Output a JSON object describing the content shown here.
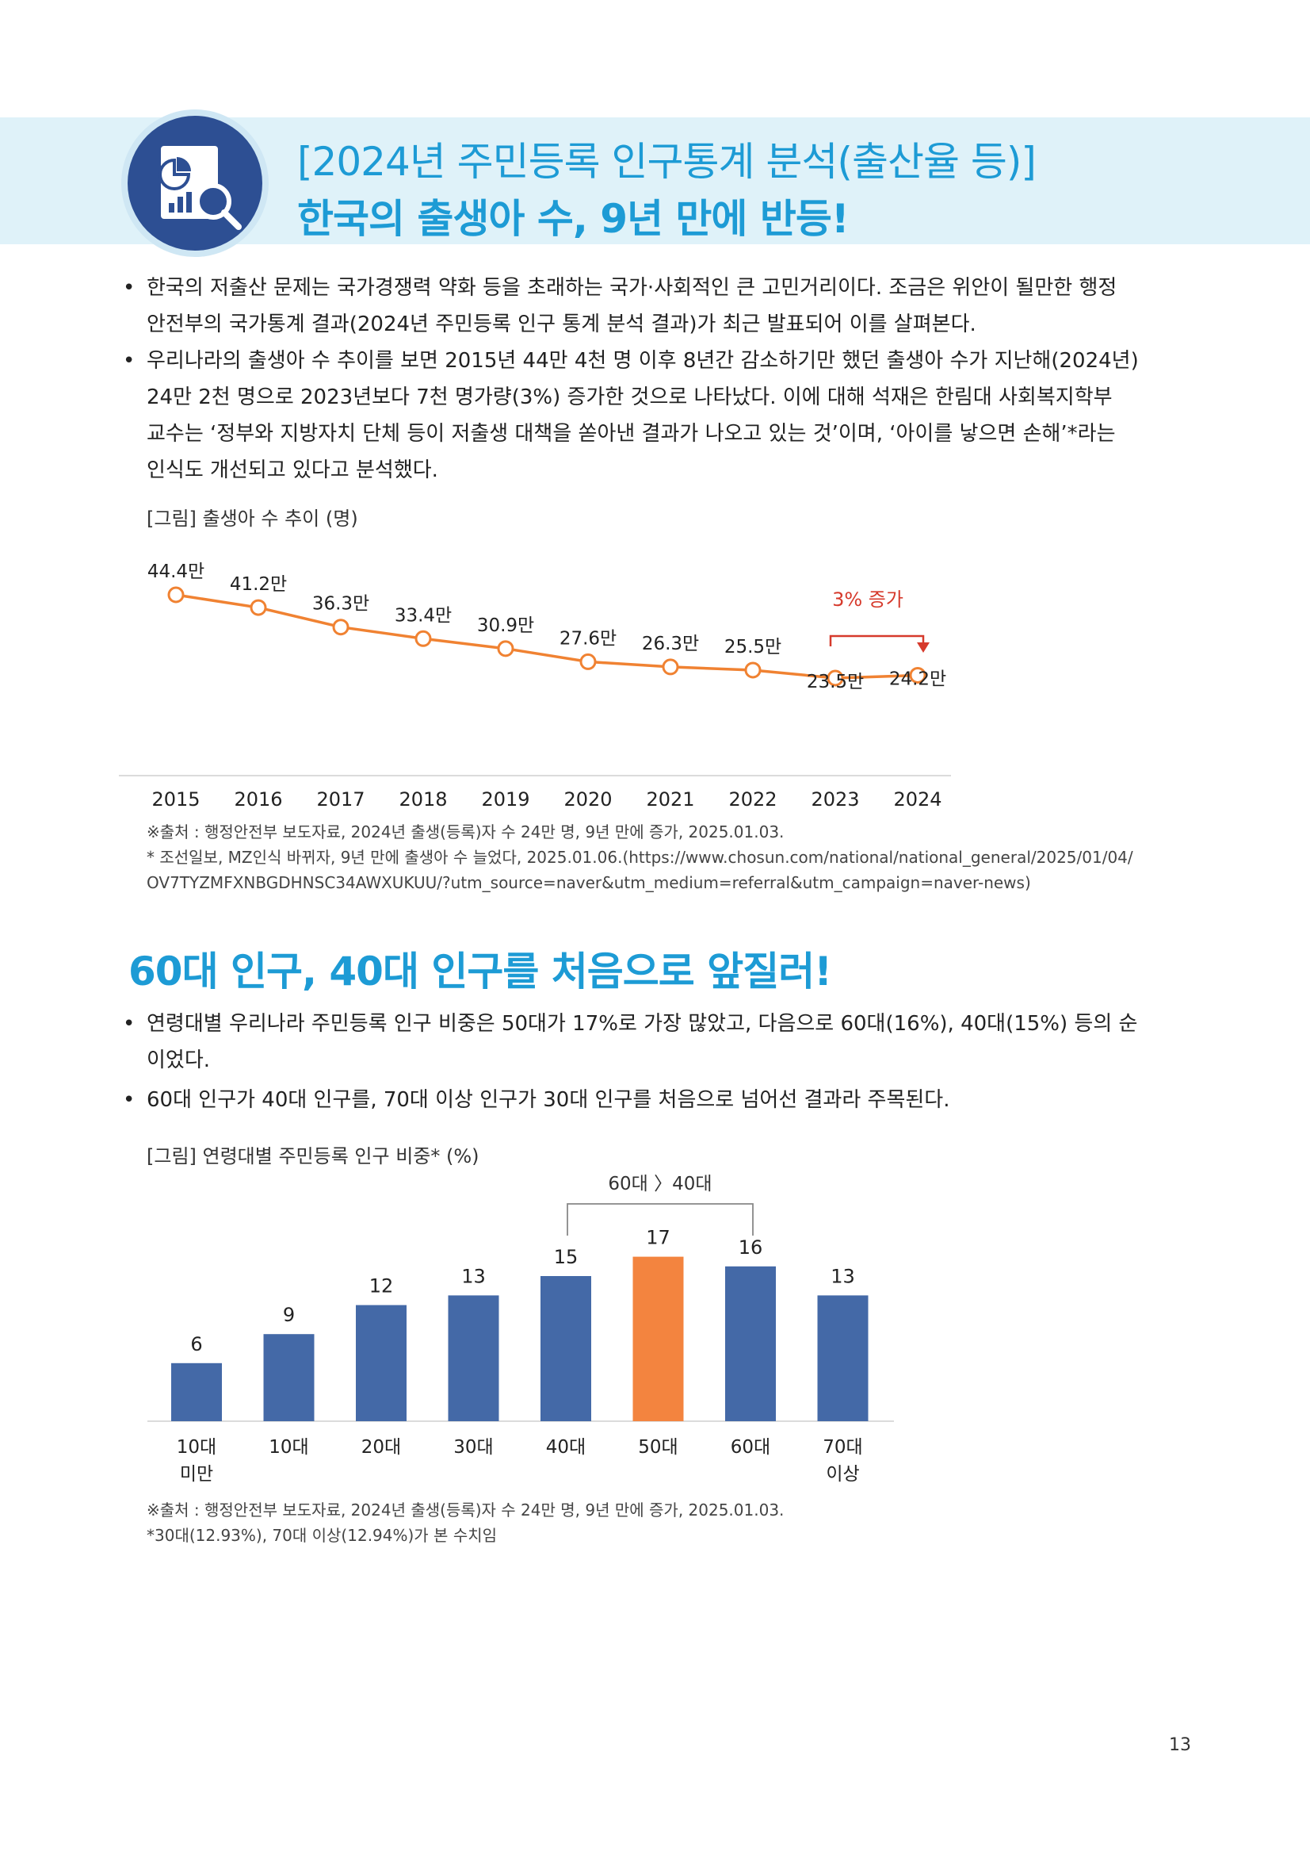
{
  "header": {
    "line1": "[2024년 주민등록 인구통계 분석(출산율 등)]",
    "line2": "한국의 출생아 수, 9년 만에 반등!",
    "icon": "report-magnifier-icon"
  },
  "section1": {
    "bullets": [
      {
        "lines": [
          "한국의 저출산 문제는 국가경쟁력 약화 등을 초래하는 국가·사회적인 큰 고민거리이다. 조금은 위안이 될만한 행정",
          "안전부의 국가통계 결과(2024년 주민등록 인구 통계 분석 결과)가 최근 발표되어 이를 살펴본다."
        ]
      },
      {
        "lines": [
          "우리나라의 출생아 수 추이를 보면 2015년 44만 4천 명 이후 8년간 감소하기만 했던 출생아 수가 지난해(2024년)",
          "24만 2천 명으로 2023년보다 7천 명가량(3%) 증가한 것으로 나타났다. 이에 대해 석재은 한림대 사회복지학부",
          "교수는 ‘정부와 지방자치 단체 등이 저출생 대책을 쏟아낸 결과가 나오고 있는 것’이며, ‘아이를 낳으면 손해’*라는",
          "인식도 개선되고 있다고 분석했다."
        ]
      }
    ],
    "figure_caption": "[그림] 출생아 수 추이 (명)",
    "annotation": "3% 증가",
    "source_lines": [
      "※출처 : 행정안전부 보도자료, 2024년 출생(등록)자 수 24만 명, 9년 만에 증가, 2025.01.03.",
      "* 조선일보, MZ인식 바뀌자, 9년 만에 출생아 수 늘었다, 2025.01.06.(https://www.chosun.com/national/national_general/2025/01/04/",
      "OV7TYZMFXNBGDHNSC34AWXUKUU/?utm_source=naver&utm_medium=referral&utm_campaign=naver-news)"
    ]
  },
  "section2": {
    "title": "60대 인구, 40대 인구를 처음으로 앞질러!",
    "bullets": [
      {
        "lines": [
          "연령대별 우리나라 주민등록 인구 비중은 50대가 17%로 가장 많았고, 다음으로 60대(16%), 40대(15%) 등의 순",
          "이었다."
        ]
      },
      {
        "lines": [
          "60대 인구가 40대 인구를, 70대 이상 인구가 30대 인구를 처음으로 넘어선 결과라 주목된다."
        ]
      }
    ],
    "figure_caption": "[그림] 연령대별 주민등록 인구 비중* (%)",
    "bracket_label": "60대 〉40대",
    "source_lines": [
      "※출처 : 행정안전부 보도자료, 2024년 출생(등록)자 수 24만 명, 9년 만에 증가, 2025.01.03.",
      "*30대(12.93%), 70대 이상(12.94%)가 본 수치임"
    ]
  },
  "bullet_symbol": "•",
  "page_number": "13",
  "colors": {
    "accent_blue": "#1d9bd5",
    "banner_bg": "#dff2f9",
    "line_orange": "#f08232",
    "bar_blue": "#4469a7",
    "bar_highlight": "#f3843f",
    "annotation_red": "#d63a2c"
  },
  "chart_data": [
    {
      "type": "line",
      "x": [
        "2015",
        "2016",
        "2017",
        "2018",
        "2019",
        "2020",
        "2021",
        "2022",
        "2023",
        "2024"
      ],
      "values": [
        44.4,
        41.2,
        36.3,
        33.4,
        30.9,
        27.6,
        26.3,
        25.5,
        23.5,
        24.2
      ],
      "data_labels": [
        "44.4만",
        "41.2만",
        "36.3만",
        "33.4만",
        "30.9만",
        "27.6만",
        "26.3만",
        "25.5만",
        "23.5만",
        "24.2만"
      ],
      "title": "[그림] 출생아 수 추이 (명)",
      "annotations": [
        "3% 증가"
      ],
      "grid": false
    },
    {
      "type": "bar",
      "categories": [
        [
          "10대",
          "미만"
        ],
        [
          "10대"
        ],
        [
          "20대"
        ],
        [
          "30대"
        ],
        [
          "40대"
        ],
        [
          "50대"
        ],
        [
          "60대"
        ],
        [
          "70대",
          "이상"
        ]
      ],
      "values": [
        6,
        9,
        12,
        13,
        15,
        17,
        16,
        13
      ],
      "highlight_index": 5,
      "title": "[그림] 연령대별 주민등록 인구 비중* (%)",
      "annotations": [
        "60대 〉40대"
      ],
      "grid": false
    }
  ]
}
